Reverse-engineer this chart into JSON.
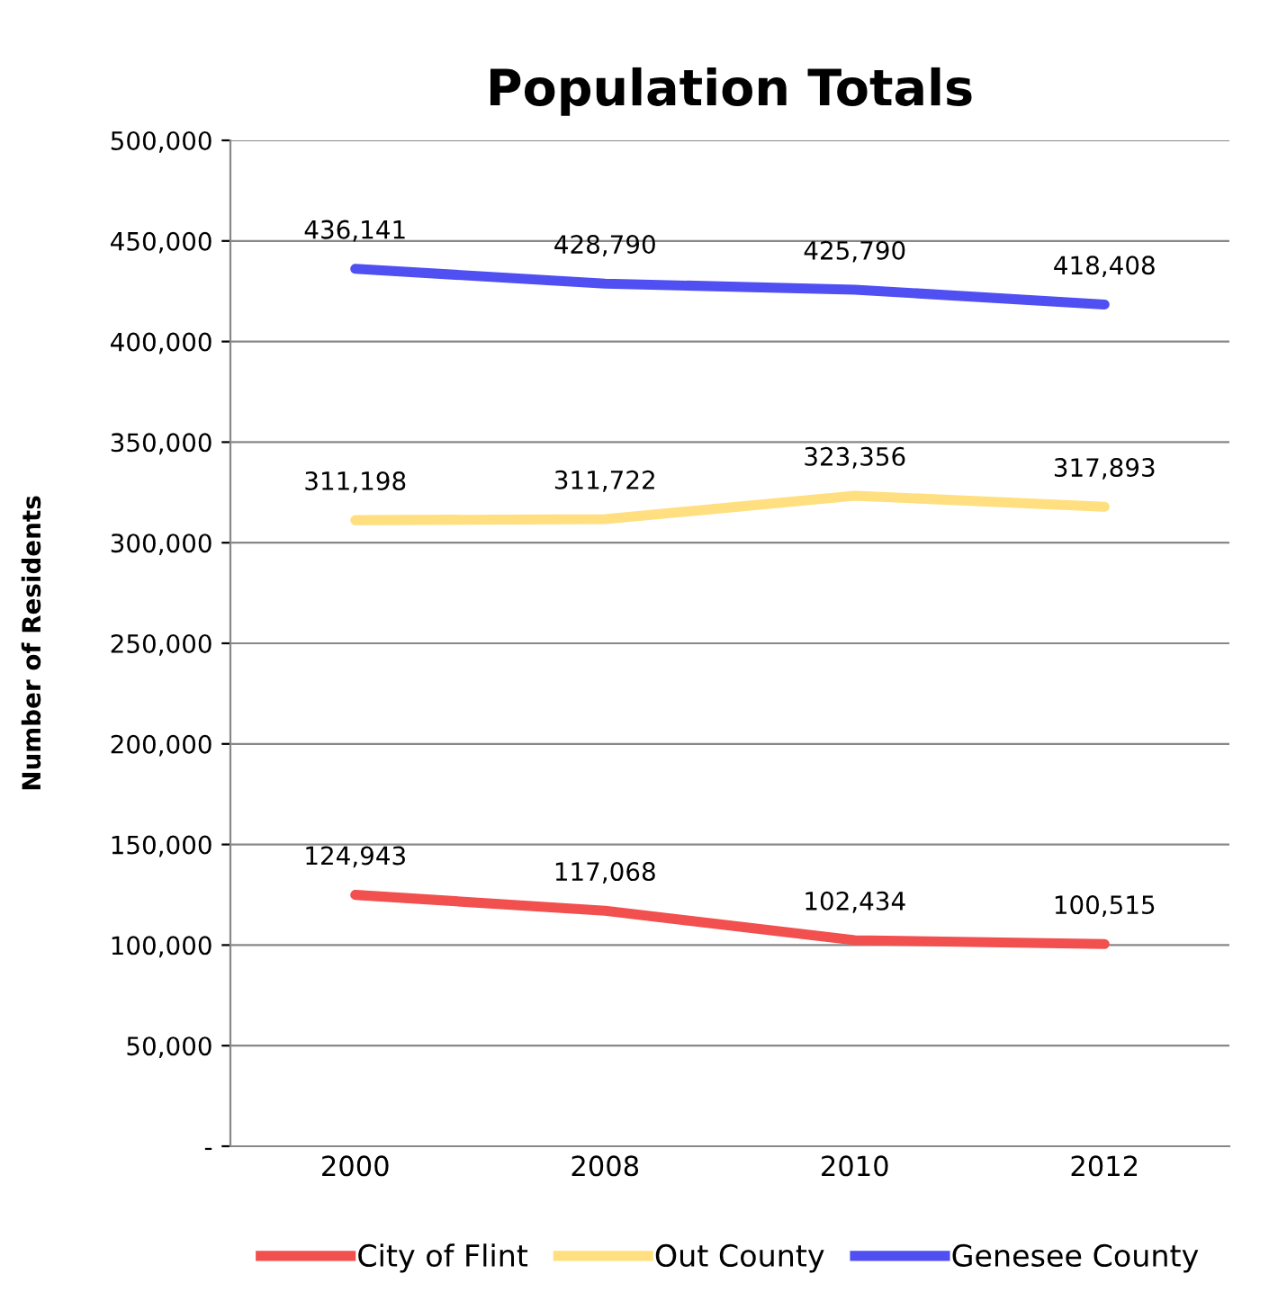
{
  "chart_data": {
    "type": "line",
    "title": "Population Totals",
    "ylabel": "Number of Residents",
    "categories": [
      "2000",
      "2008",
      "2010",
      "2012"
    ],
    "series": [
      {
        "name": "City of Flint",
        "color": "#f24f4f",
        "values": [
          124943,
          117068,
          102434,
          100515
        ],
        "value_labels": [
          "124,943",
          "117,068",
          "102,434",
          "100,515"
        ]
      },
      {
        "name": "Out County",
        "color": "#ffdf7f",
        "values": [
          311198,
          311722,
          323356,
          317893
        ],
        "value_labels": [
          "311,198",
          "311,722",
          "323,356",
          "317,893"
        ]
      },
      {
        "name": "Genesee County",
        "color": "#4f4ff2",
        "values": [
          436141,
          428790,
          425790,
          418408
        ],
        "value_labels": [
          "436,141",
          "428,790",
          "425,790",
          "418,408"
        ]
      }
    ],
    "ylim": [
      0,
      500000
    ],
    "yticks": [
      {
        "value": 0,
        "label": "-"
      },
      {
        "value": 50000,
        "label": "50,000"
      },
      {
        "value": 100000,
        "label": "100,000"
      },
      {
        "value": 150000,
        "label": "150,000"
      },
      {
        "value": 200000,
        "label": "200,000"
      },
      {
        "value": 250000,
        "label": "250,000"
      },
      {
        "value": 300000,
        "label": "300,000"
      },
      {
        "value": 350000,
        "label": "350,000"
      },
      {
        "value": 400000,
        "label": "400,000"
      },
      {
        "value": 450000,
        "label": "450,000"
      },
      {
        "value": 500000,
        "label": "500,000"
      }
    ],
    "grid": "y",
    "legend": "bottom",
    "marker": "none",
    "line_style": "solid"
  }
}
